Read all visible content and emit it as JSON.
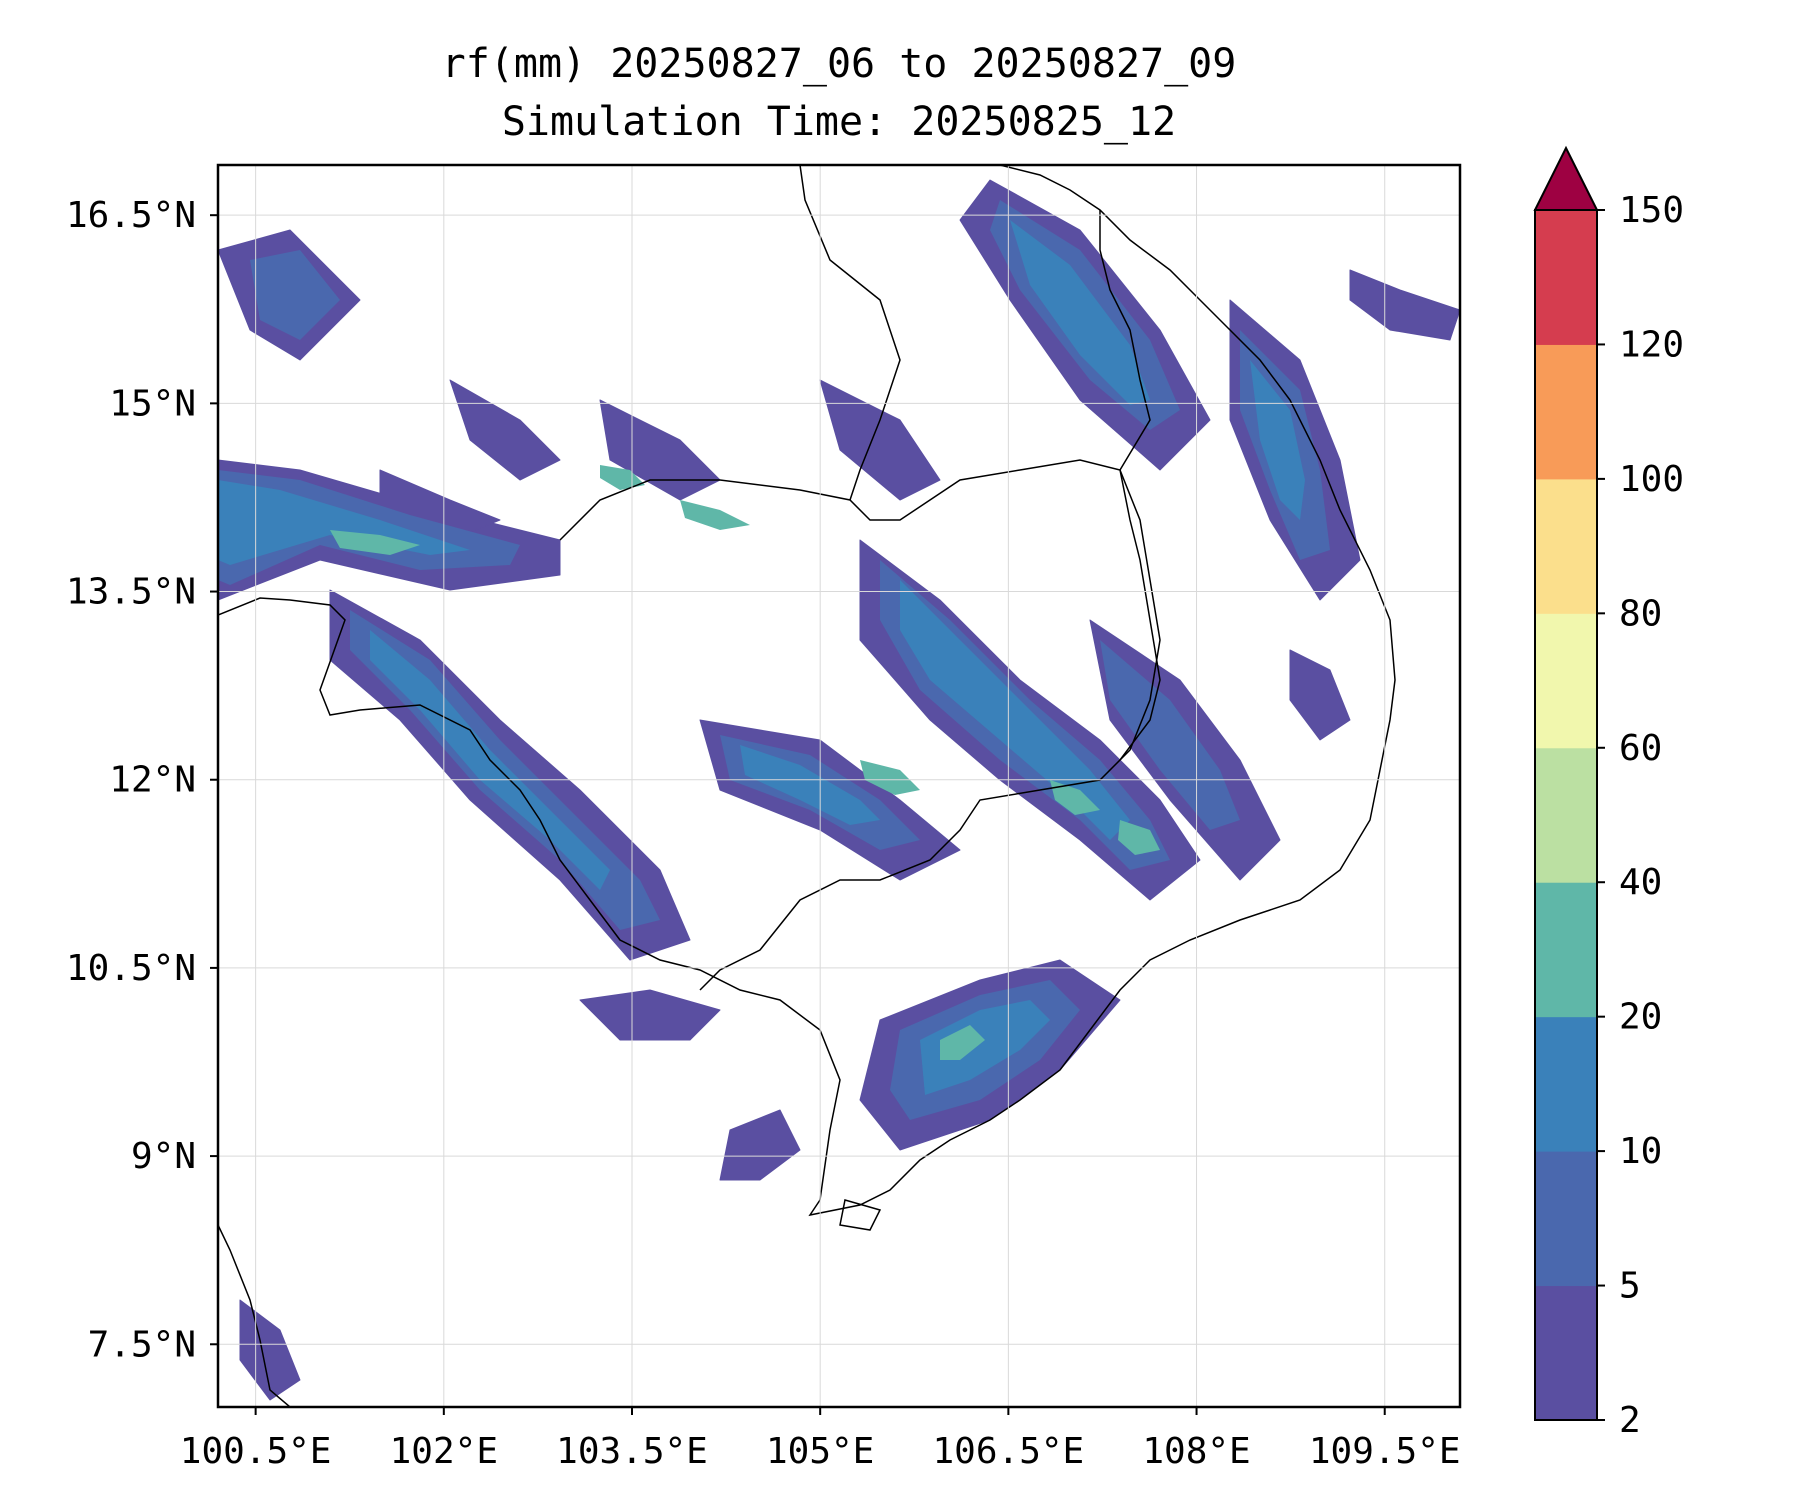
{
  "title_line1": "rf(mm) 20250827_06 to 20250827_09",
  "title_line2": "Simulation Time: 20250825_12",
  "map": {
    "lon_range": [
      100.2,
      110.1
    ],
    "lat_range": [
      7.0,
      16.9
    ],
    "lon_ticks": [
      100.5,
      102,
      103.5,
      105,
      106.5,
      108,
      109.5
    ],
    "lat_ticks": [
      7.5,
      9,
      10.5,
      12,
      13.5,
      15,
      16.5
    ],
    "lon_labels": [
      "100.5°E",
      "102°E",
      "103.5°E",
      "105°E",
      "106.5°E",
      "108°E",
      "109.5°E"
    ],
    "lat_labels": [
      "7.5°N",
      "9°N",
      "10.5°N",
      "12°N",
      "13.5°N",
      "15°N",
      "16.5°N"
    ],
    "gridlines": true
  },
  "colorbar": {
    "levels": [
      2,
      5,
      10,
      20,
      40,
      60,
      80,
      100,
      120,
      150
    ],
    "labels": [
      "2",
      "5",
      "10",
      "20",
      "40",
      "60",
      "80",
      "100",
      "120",
      "150"
    ],
    "colors": [
      "#5a4fa1",
      "#4a68ae",
      "#3a81ba",
      "#5fb7a8",
      "#bbe0a2",
      "#f1f7ad",
      "#fbdf8c",
      "#f89b58",
      "#d53d4f"
    ],
    "extend_color": "#9e0142"
  },
  "colors": {
    "coast": "#000000",
    "grid": "#d9d9d9"
  }
}
